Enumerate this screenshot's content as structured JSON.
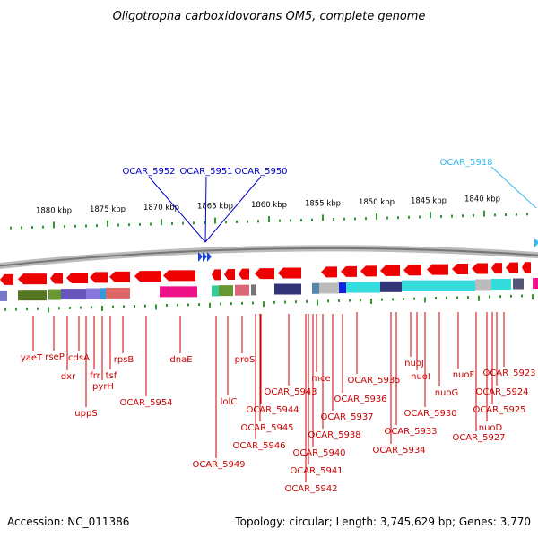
{
  "title": "Oligotropha carboxidovorans OM5, complete genome",
  "footer": {
    "accession": "Accession: NC_011386",
    "stats": "Topology: circular; Length: 3,745,629 bp; Genes: 3,770"
  },
  "scale_labels": [
    "1880 kbp",
    "1875 kbp",
    "1870 kbp",
    "1865 kbp",
    "1860 kbp",
    "1855 kbp",
    "1850 kbp",
    "1845 kbp",
    "1840 kbp"
  ],
  "top_labels": [
    {
      "text": "OCAR_5952",
      "color": "#0000cc"
    },
    {
      "text": "OCAR_5951",
      "color": "#0000cc"
    },
    {
      "text": "OCAR_5950",
      "color": "#0000cc"
    },
    {
      "text": "OCAR_5918",
      "color": "#33bbee"
    }
  ],
  "gene_labels": [
    "yaeT",
    "rseP",
    "dxr",
    "cdsA",
    "uppS",
    "frr",
    "pyrH",
    "tsf",
    "rpsB",
    "OCAR_5954",
    "dnaE",
    "OCAR_5949",
    "lolC",
    "proS",
    "OCAR_5943",
    "OCAR_5944",
    "OCAR_5945",
    "OCAR_5946",
    "mce",
    "OCAR_5942",
    "OCAR_5941",
    "OCAR_5940",
    "OCAR_5938",
    "OCAR_5937",
    "OCAR_5936",
    "OCAR_5935",
    "OCAR_5934",
    "OCAR_5933",
    "nuoI",
    "nuoJ",
    "OCAR_5930",
    "nuoG",
    "nuoF",
    "OCAR_5927",
    "nuoD",
    "OCAR_5925",
    "OCAR_5924",
    "OCAR_5923"
  ],
  "colors": {
    "forward_gene": "#ee0000",
    "forward_special": "#1a3fdd",
    "ruler_ticks": "#339933",
    "backbone": "#888888",
    "top_label_line": "#0000cc",
    "cyan_label_line": "#33bbee",
    "gene_label_line": "#cc0000"
  }
}
